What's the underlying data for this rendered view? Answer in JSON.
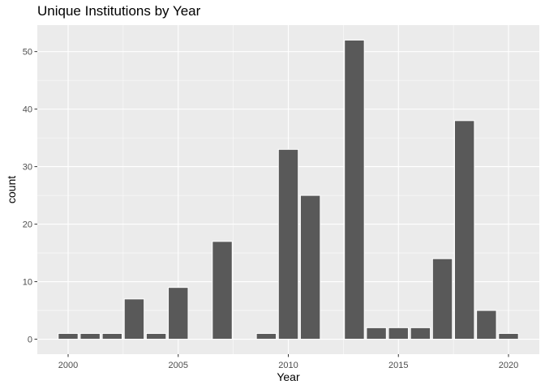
{
  "chart_data": {
    "type": "bar",
    "title": "Unique Institutions by Year",
    "xlabel": "Year",
    "ylabel": "count",
    "x": [
      2000,
      2001,
      2002,
      2003,
      2004,
      2005,
      2007,
      2009,
      2010,
      2011,
      2013,
      2014,
      2015,
      2016,
      2017,
      2018,
      2019,
      2020
    ],
    "values": [
      1,
      1,
      1,
      7,
      1,
      9,
      17,
      1,
      33,
      25,
      52,
      2,
      2,
      2,
      14,
      38,
      5,
      1
    ],
    "xlim": [
      1998.6,
      2021.4
    ],
    "ylim": [
      -2.6,
      54.6
    ],
    "x_ticks": [
      "2000",
      "2005",
      "2010",
      "2015",
      "2020"
    ],
    "y_ticks": [
      "0",
      "10",
      "20",
      "30",
      "40",
      "50"
    ],
    "grid": true,
    "colors": {
      "bar": "#595959",
      "panel": "#ebebeb",
      "grid_major": "#ffffff",
      "tick_text": "#4d4d4d"
    }
  }
}
